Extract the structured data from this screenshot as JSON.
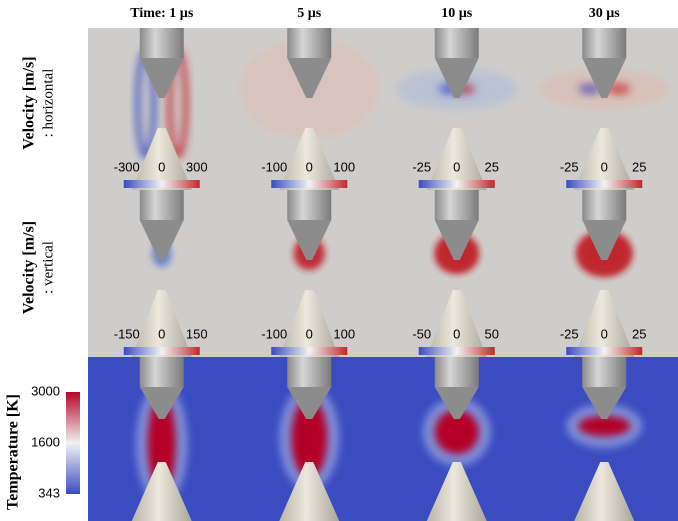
{
  "columns": [
    "Time: 1 µs",
    "5 µs",
    "10 µs",
    "30 µs"
  ],
  "rows": [
    {
      "label": "Velocity [m/s]",
      "sublabel": ": horizontal",
      "colorbars": [
        [
          -300,
          0,
          300
        ],
        [
          -100,
          0,
          100
        ],
        [
          -25,
          0,
          25
        ],
        [
          -25,
          0,
          25
        ]
      ]
    },
    {
      "label": "Velocity [m/s]",
      "sublabel": ": vertical",
      "colorbars": [
        [
          -150,
          0,
          150
        ],
        [
          -100,
          0,
          100
        ],
        [
          -50,
          0,
          50
        ],
        [
          -25,
          0,
          25
        ]
      ]
    },
    {
      "label": "Temperature [K]",
      "colorbar": [
        3000,
        1600,
        343
      ]
    }
  ]
}
